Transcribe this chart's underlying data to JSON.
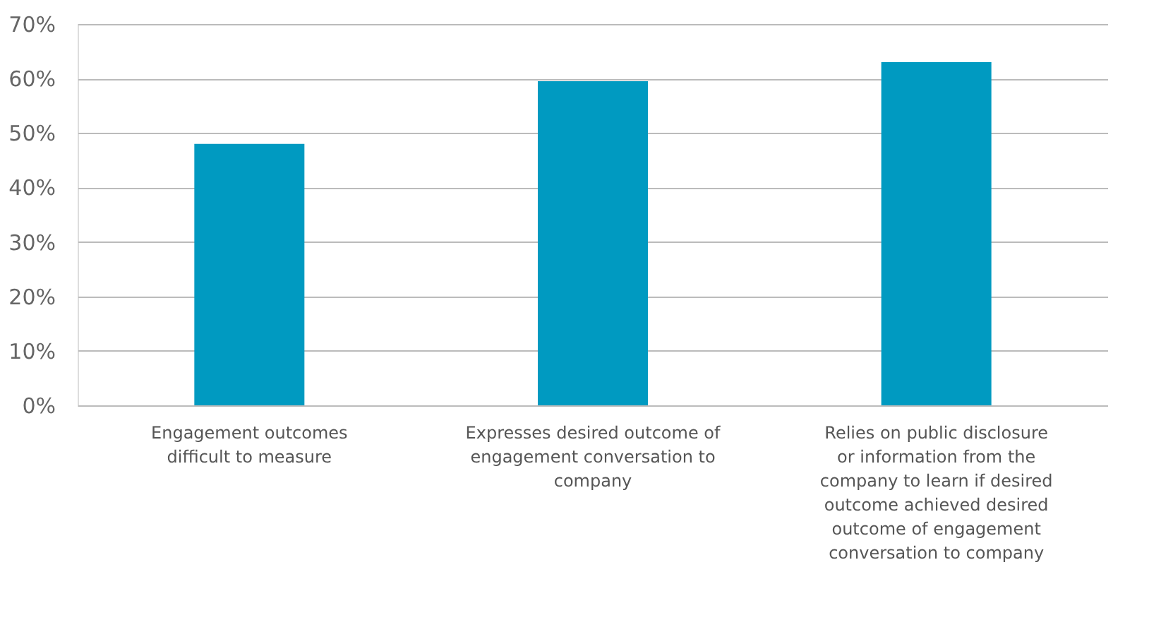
{
  "chart_data": {
    "type": "bar",
    "categories": [
      "Engagement outcomes difficult to measure",
      "Expresses desired outcome of engagement conversation to company",
      "Relies on public disclosure or information from the company to learn if desired outcome achieved desired outcome of engagement conversation to company"
    ],
    "values": [
      48,
      59.5,
      63
    ],
    "color": "#009ac1",
    "ylim": [
      0,
      70
    ],
    "yticks": [
      {
        "value": 0,
        "label": "0%"
      },
      {
        "value": 10,
        "label": "10%"
      },
      {
        "value": 20,
        "label": "20%"
      },
      {
        "value": 30,
        "label": "30%"
      },
      {
        "value": 40,
        "label": "40%"
      },
      {
        "value": 50,
        "label": "50%"
      },
      {
        "value": 60,
        "label": "60%"
      },
      {
        "value": 70,
        "label": "70%"
      }
    ],
    "grid": "y"
  }
}
